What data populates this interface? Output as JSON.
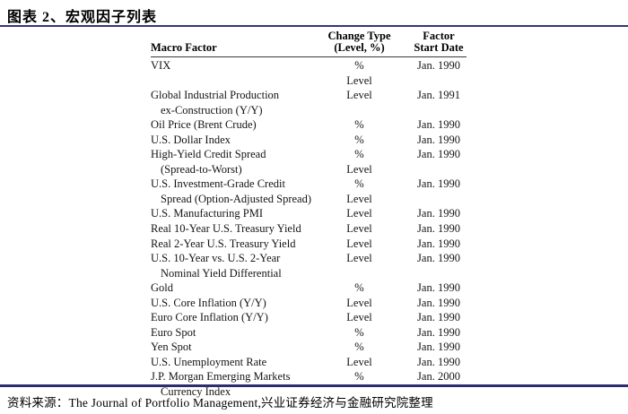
{
  "page": {
    "accent_line_color": "#34347c",
    "background_color": "#ffffff"
  },
  "figure": {
    "title": "图表 2、宏观因子列表"
  },
  "table": {
    "headers": {
      "macro_factor": "Macro Factor",
      "change_type_line1": "Change Type",
      "change_type_line2": "(Level, %)",
      "start_date_line1": "Factor",
      "start_date_line2": "Start Date"
    },
    "rows": [
      {
        "lines": [
          {
            "factor": "VIX",
            "indent": false,
            "change": "%",
            "date": "Jan. 1990"
          },
          {
            "factor": "",
            "indent": false,
            "change": "Level",
            "date": ""
          }
        ]
      },
      {
        "lines": [
          {
            "factor": "Global Industrial Production",
            "indent": false,
            "change": "Level",
            "date": "Jan. 1991"
          },
          {
            "factor": "ex-Construction (Y/Y)",
            "indent": true,
            "change": "",
            "date": ""
          }
        ]
      },
      {
        "lines": [
          {
            "factor": "Oil Price (Brent Crude)",
            "indent": false,
            "change": "%",
            "date": "Jan. 1990"
          }
        ]
      },
      {
        "lines": [
          {
            "factor": "U.S. Dollar Index",
            "indent": false,
            "change": "%",
            "date": "Jan. 1990"
          }
        ]
      },
      {
        "lines": [
          {
            "factor": "High-Yield Credit Spread",
            "indent": false,
            "change": "%",
            "date": "Jan. 1990"
          },
          {
            "factor": "(Spread-to-Worst)",
            "indent": true,
            "change": "Level",
            "date": ""
          }
        ]
      },
      {
        "lines": [
          {
            "factor": "U.S. Investment-Grade Credit",
            "indent": false,
            "change": "%",
            "date": "Jan. 1990"
          },
          {
            "factor": "Spread (Option-Adjusted Spread)",
            "indent": true,
            "change": "Level",
            "date": ""
          }
        ]
      },
      {
        "lines": [
          {
            "factor": "U.S. Manufacturing PMI",
            "indent": false,
            "change": "Level",
            "date": "Jan. 1990"
          }
        ]
      },
      {
        "lines": [
          {
            "factor": "Real 10-Year U.S. Treasury Yield",
            "indent": false,
            "change": "Level",
            "date": "Jan. 1990"
          }
        ]
      },
      {
        "lines": [
          {
            "factor": "Real 2-Year U.S. Treasury Yield",
            "indent": false,
            "change": "Level",
            "date": "Jan. 1990"
          }
        ]
      },
      {
        "lines": [
          {
            "factor": "U.S. 10-Year vs. U.S. 2-Year",
            "indent": false,
            "change": "Level",
            "date": "Jan. 1990"
          },
          {
            "factor": "Nominal Yield Differential",
            "indent": true,
            "change": "",
            "date": ""
          }
        ]
      },
      {
        "lines": [
          {
            "factor": "Gold",
            "indent": false,
            "change": "%",
            "date": "Jan. 1990"
          }
        ]
      },
      {
        "lines": [
          {
            "factor": "U.S. Core Inflation (Y/Y)",
            "indent": false,
            "change": "Level",
            "date": "Jan. 1990"
          }
        ]
      },
      {
        "lines": [
          {
            "factor": "Euro Core Inflation (Y/Y)",
            "indent": false,
            "change": "Level",
            "date": "Jan. 1990"
          }
        ]
      },
      {
        "lines": [
          {
            "factor": "Euro Spot",
            "indent": false,
            "change": "%",
            "date": "Jan. 1990"
          }
        ]
      },
      {
        "lines": [
          {
            "factor": "Yen Spot",
            "indent": false,
            "change": "%",
            "date": "Jan. 1990"
          }
        ]
      },
      {
        "lines": [
          {
            "factor": "U.S. Unemployment Rate",
            "indent": false,
            "change": "Level",
            "date": "Jan. 1990"
          }
        ]
      },
      {
        "lines": [
          {
            "factor": "J.P. Morgan Emerging Markets",
            "indent": false,
            "change": "%",
            "date": "Jan. 2000"
          },
          {
            "factor": "Currency Index",
            "indent": true,
            "change": "",
            "date": ""
          }
        ]
      }
    ]
  },
  "footer": {
    "source": "资料来源：The Journal of Portfolio Management,兴业证券经济与金融研究院整理"
  }
}
